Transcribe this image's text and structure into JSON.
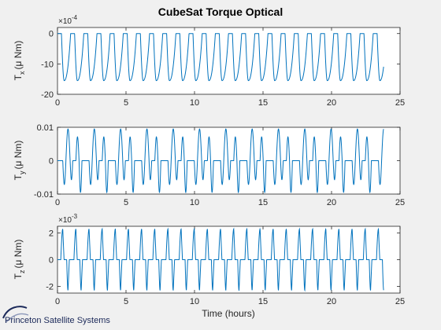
{
  "figure": {
    "title": "CubeSat Torque Optical",
    "logo_text": "Princeton Satellite Systems",
    "colors": {
      "line": "#0072bd",
      "axes": "#262626",
      "background": "#f0f0f0"
    }
  },
  "chart_data": [
    {
      "type": "line",
      "name_label": "T",
      "name_sub": "x",
      "unit_label": "(μ Nm)",
      "exponent_base": "×10",
      "exponent_power": "-4",
      "scale_exponent": -4,
      "xlim": [
        0,
        25
      ],
      "ylim": [
        -20,
        2
      ],
      "xticks": [
        "0",
        "5",
        "10",
        "15",
        "20",
        "25"
      ],
      "xtick_values": [
        0,
        5,
        10,
        15,
        20,
        25
      ],
      "yticks": [
        "-20",
        "-10",
        "0"
      ],
      "ytick_values": [
        -20,
        -10,
        0
      ],
      "series": [
        {
          "period_hours": 0.96,
          "start_hours": 0.0,
          "end_hours": 23.8,
          "plateau": 0,
          "peak": -15.5,
          "waveform": "single lobe per cycle: ~0 plateau, drop to about -15.5, cusp back to 0"
        }
      ]
    },
    {
      "type": "line",
      "name_label": "T",
      "name_sub": "y",
      "unit_label": "(μ Nm)",
      "exponent_base": "",
      "exponent_power": "",
      "scale_exponent": 0,
      "xlim": [
        0,
        25
      ],
      "ylim": [
        -0.01,
        0.01
      ],
      "xticks": [
        "0",
        "5",
        "10",
        "15",
        "20",
        "25"
      ],
      "xtick_values": [
        0,
        5,
        10,
        15,
        20,
        25
      ],
      "yticks": [
        "-0.01",
        "0",
        "0.01"
      ],
      "ytick_values": [
        -0.01,
        0,
        0.01
      ],
      "series": [
        {
          "period_hours": 1.92,
          "start_hours": 0.0,
          "end_hours": 23.8,
          "max": 0.0095,
          "min": -0.0095,
          "waveform": "bipolar oscillations with flat zero segments"
        }
      ]
    },
    {
      "type": "line",
      "name_label": "T",
      "name_sub": "z",
      "unit_label": "(μ Nm)",
      "exponent_base": "×10",
      "exponent_power": "-3",
      "scale_exponent": -3,
      "xlim": [
        0,
        25
      ],
      "ylim": [
        -2.5,
        2.5
      ],
      "xticks": [
        "0",
        "5",
        "10",
        "15",
        "20",
        "25"
      ],
      "xtick_values": [
        0,
        5,
        10,
        15,
        20,
        25
      ],
      "yticks": [
        "-2",
        "0",
        "2"
      ],
      "ytick_values": [
        -2,
        0,
        2
      ],
      "series": [
        {
          "period_hours": 0.96,
          "start_hours": 0.0,
          "end_hours": 23.8,
          "max": 2.3,
          "min": -2.3,
          "waveform": "bipolar spikes with zero plateaus"
        }
      ]
    }
  ],
  "xlabel": "Time (hours)"
}
